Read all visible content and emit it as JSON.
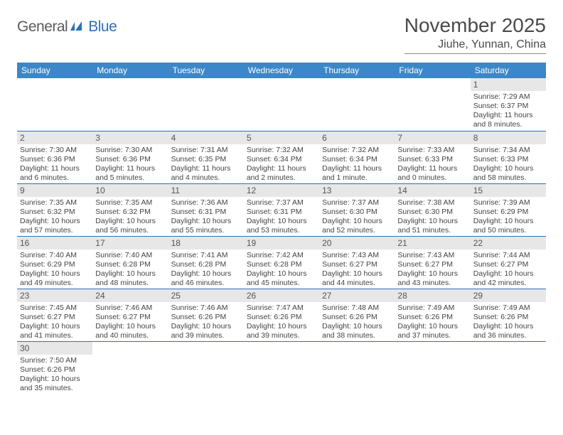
{
  "logo": {
    "general": "General",
    "blue": "Blue"
  },
  "title": "November 2025",
  "location": "Jiuhe, Yunnan, China",
  "header_bg": "#3b87c8",
  "accent_line": "#2d71b8",
  "daynum_bg": "#e7e7e7",
  "days": [
    "Sunday",
    "Monday",
    "Tuesday",
    "Wednesday",
    "Thursday",
    "Friday",
    "Saturday"
  ],
  "weeks": [
    [
      null,
      null,
      null,
      null,
      null,
      null,
      {
        "n": "1",
        "sr": "Sunrise: 7:29 AM",
        "ss": "Sunset: 6:37 PM",
        "dl": "Daylight: 11 hours and 8 minutes."
      }
    ],
    [
      {
        "n": "2",
        "sr": "Sunrise: 7:30 AM",
        "ss": "Sunset: 6:36 PM",
        "dl": "Daylight: 11 hours and 6 minutes."
      },
      {
        "n": "3",
        "sr": "Sunrise: 7:30 AM",
        "ss": "Sunset: 6:36 PM",
        "dl": "Daylight: 11 hours and 5 minutes."
      },
      {
        "n": "4",
        "sr": "Sunrise: 7:31 AM",
        "ss": "Sunset: 6:35 PM",
        "dl": "Daylight: 11 hours and 4 minutes."
      },
      {
        "n": "5",
        "sr": "Sunrise: 7:32 AM",
        "ss": "Sunset: 6:34 PM",
        "dl": "Daylight: 11 hours and 2 minutes."
      },
      {
        "n": "6",
        "sr": "Sunrise: 7:32 AM",
        "ss": "Sunset: 6:34 PM",
        "dl": "Daylight: 11 hours and 1 minute."
      },
      {
        "n": "7",
        "sr": "Sunrise: 7:33 AM",
        "ss": "Sunset: 6:33 PM",
        "dl": "Daylight: 11 hours and 0 minutes."
      },
      {
        "n": "8",
        "sr": "Sunrise: 7:34 AM",
        "ss": "Sunset: 6:33 PM",
        "dl": "Daylight: 10 hours and 58 minutes."
      }
    ],
    [
      {
        "n": "9",
        "sr": "Sunrise: 7:35 AM",
        "ss": "Sunset: 6:32 PM",
        "dl": "Daylight: 10 hours and 57 minutes."
      },
      {
        "n": "10",
        "sr": "Sunrise: 7:35 AM",
        "ss": "Sunset: 6:32 PM",
        "dl": "Daylight: 10 hours and 56 minutes."
      },
      {
        "n": "11",
        "sr": "Sunrise: 7:36 AM",
        "ss": "Sunset: 6:31 PM",
        "dl": "Daylight: 10 hours and 55 minutes."
      },
      {
        "n": "12",
        "sr": "Sunrise: 7:37 AM",
        "ss": "Sunset: 6:31 PM",
        "dl": "Daylight: 10 hours and 53 minutes."
      },
      {
        "n": "13",
        "sr": "Sunrise: 7:37 AM",
        "ss": "Sunset: 6:30 PM",
        "dl": "Daylight: 10 hours and 52 minutes."
      },
      {
        "n": "14",
        "sr": "Sunrise: 7:38 AM",
        "ss": "Sunset: 6:30 PM",
        "dl": "Daylight: 10 hours and 51 minutes."
      },
      {
        "n": "15",
        "sr": "Sunrise: 7:39 AM",
        "ss": "Sunset: 6:29 PM",
        "dl": "Daylight: 10 hours and 50 minutes."
      }
    ],
    [
      {
        "n": "16",
        "sr": "Sunrise: 7:40 AM",
        "ss": "Sunset: 6:29 PM",
        "dl": "Daylight: 10 hours and 49 minutes."
      },
      {
        "n": "17",
        "sr": "Sunrise: 7:40 AM",
        "ss": "Sunset: 6:28 PM",
        "dl": "Daylight: 10 hours and 48 minutes."
      },
      {
        "n": "18",
        "sr": "Sunrise: 7:41 AM",
        "ss": "Sunset: 6:28 PM",
        "dl": "Daylight: 10 hours and 46 minutes."
      },
      {
        "n": "19",
        "sr": "Sunrise: 7:42 AM",
        "ss": "Sunset: 6:28 PM",
        "dl": "Daylight: 10 hours and 45 minutes."
      },
      {
        "n": "20",
        "sr": "Sunrise: 7:43 AM",
        "ss": "Sunset: 6:27 PM",
        "dl": "Daylight: 10 hours and 44 minutes."
      },
      {
        "n": "21",
        "sr": "Sunrise: 7:43 AM",
        "ss": "Sunset: 6:27 PM",
        "dl": "Daylight: 10 hours and 43 minutes."
      },
      {
        "n": "22",
        "sr": "Sunrise: 7:44 AM",
        "ss": "Sunset: 6:27 PM",
        "dl": "Daylight: 10 hours and 42 minutes."
      }
    ],
    [
      {
        "n": "23",
        "sr": "Sunrise: 7:45 AM",
        "ss": "Sunset: 6:27 PM",
        "dl": "Daylight: 10 hours and 41 minutes."
      },
      {
        "n": "24",
        "sr": "Sunrise: 7:46 AM",
        "ss": "Sunset: 6:27 PM",
        "dl": "Daylight: 10 hours and 40 minutes."
      },
      {
        "n": "25",
        "sr": "Sunrise: 7:46 AM",
        "ss": "Sunset: 6:26 PM",
        "dl": "Daylight: 10 hours and 39 minutes."
      },
      {
        "n": "26",
        "sr": "Sunrise: 7:47 AM",
        "ss": "Sunset: 6:26 PM",
        "dl": "Daylight: 10 hours and 39 minutes."
      },
      {
        "n": "27",
        "sr": "Sunrise: 7:48 AM",
        "ss": "Sunset: 6:26 PM",
        "dl": "Daylight: 10 hours and 38 minutes."
      },
      {
        "n": "28",
        "sr": "Sunrise: 7:49 AM",
        "ss": "Sunset: 6:26 PM",
        "dl": "Daylight: 10 hours and 37 minutes."
      },
      {
        "n": "29",
        "sr": "Sunrise: 7:49 AM",
        "ss": "Sunset: 6:26 PM",
        "dl": "Daylight: 10 hours and 36 minutes."
      }
    ],
    [
      {
        "n": "30",
        "sr": "Sunrise: 7:50 AM",
        "ss": "Sunset: 6:26 PM",
        "dl": "Daylight: 10 hours and 35 minutes."
      },
      null,
      null,
      null,
      null,
      null,
      null
    ]
  ]
}
